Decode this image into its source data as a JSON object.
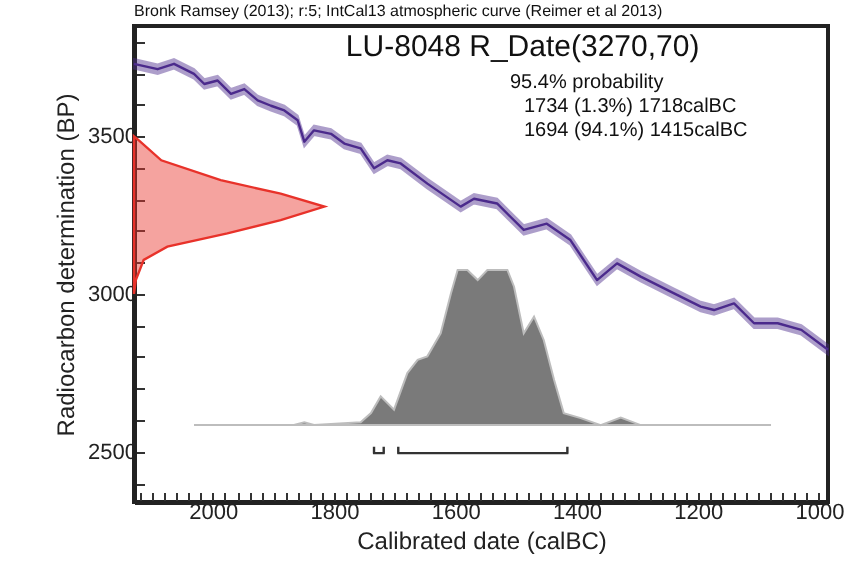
{
  "chart_data": {
    "type": "line",
    "title": "LU-8048 R_Date(3270,70)",
    "xlabel": "Calibrated date (calBC)",
    "ylabel": "Radiocarbon determination (BP)",
    "annotations": [
      "Bronk Ramsey (2013); r:5; IntCal13 atmospheric curve (Reimer et al 2013)",
      "95.4% probability",
      "1734 (1.3%) 1718calBC",
      "1694 (94.1%) 1415calBC"
    ],
    "xlim": [
      2130,
      985
    ],
    "ylim": [
      2340,
      3850
    ],
    "xticks": [
      {
        "value": 2120,
        "label": null
      },
      {
        "value": 2100,
        "label": null
      },
      {
        "value": 2080,
        "label": null
      },
      {
        "value": 2060,
        "label": null
      },
      {
        "value": 2040,
        "label": null
      },
      {
        "value": 2020,
        "label": null
      },
      2000,
      {
        "value": 1980,
        "label": null
      },
      {
        "value": 1960,
        "label": null
      },
      {
        "value": 1940,
        "label": null
      },
      {
        "value": 1920,
        "label": null
      },
      {
        "value": 1900,
        "label": null
      },
      {
        "value": 1880,
        "label": null
      },
      {
        "value": 1860,
        "label": null
      },
      {
        "value": 1840,
        "label": null
      },
      {
        "value": 1820,
        "label": null
      },
      1800,
      {
        "value": 1780,
        "label": null
      },
      {
        "value": 1760,
        "label": null
      },
      {
        "value": 1740,
        "label": null
      },
      {
        "value": 1720,
        "label": null
      },
      {
        "value": 1700,
        "label": null
      },
      {
        "value": 1680,
        "label": null
      },
      {
        "value": 1660,
        "label": null
      },
      {
        "value": 1640,
        "label": null
      },
      {
        "value": 1620,
        "label": null
      },
      1600,
      {
        "value": 1580,
        "label": null
      },
      {
        "value": 1560,
        "label": null
      },
      {
        "value": 1540,
        "label": null
      },
      {
        "value": 1520,
        "label": null
      },
      {
        "value": 1500,
        "label": null
      },
      {
        "value": 1480,
        "label": null
      },
      {
        "value": 1460,
        "label": null
      },
      {
        "value": 1440,
        "label": null
      },
      {
        "value": 1420,
        "label": null
      },
      1400,
      {
        "value": 1380,
        "label": null
      },
      {
        "value": 1360,
        "label": null
      },
      {
        "value": 1340,
        "label": null
      },
      {
        "value": 1320,
        "label": null
      },
      {
        "value": 1300,
        "label": null
      },
      {
        "value": 1280,
        "label": null
      },
      {
        "value": 1260,
        "label": null
      },
      {
        "value": 1240,
        "label": null
      },
      {
        "value": 1220,
        "label": null
      },
      1200,
      {
        "value": 1180,
        "label": null
      },
      {
        "value": 1160,
        "label": null
      },
      {
        "value": 1140,
        "label": null
      },
      {
        "value": 1120,
        "label": null
      },
      {
        "value": 1100,
        "label": null
      },
      {
        "value": 1080,
        "label": null
      },
      {
        "value": 1060,
        "label": null
      },
      {
        "value": 1040,
        "label": null
      },
      {
        "value": 1020,
        "label": null
      },
      1000
    ],
    "yticks": [
      {
        "value": 2400,
        "label": null
      },
      2500,
      {
        "value": 2600,
        "label": null
      },
      {
        "value": 2700,
        "label": null
      },
      {
        "value": 2800,
        "label": null
      },
      {
        "value": 2900,
        "label": null
      },
      3000,
      {
        "value": 3100,
        "label": null
      },
      {
        "value": 3200,
        "label": null
      },
      {
        "value": 3300,
        "label": null
      },
      {
        "value": 3400,
        "label": null
      },
      3500,
      {
        "value": 3600,
        "label": null
      },
      {
        "value": 3700,
        "label": null
      },
      {
        "value": 3800,
        "label": null
      }
    ],
    "grid": false,
    "series": [
      {
        "color": "#4b2a8c",
        "x": [
          2130,
          2091,
          2064,
          2031,
          2014,
          1992,
          1970,
          1948,
          1926,
          1904,
          1882,
          1860,
          1849,
          1833,
          1805,
          1783,
          1756,
          1734,
          1712,
          1690,
          1646,
          1591,
          1569,
          1531,
          1487,
          1449,
          1410,
          1366,
          1333,
          1294,
          1239,
          1195,
          1173,
          1140,
          1107,
          1068,
          1029,
          985
        ],
        "values": [
          3730,
          3713,
          3730,
          3698,
          3666,
          3677,
          3635,
          3650,
          3614,
          3597,
          3582,
          3551,
          3483,
          3519,
          3508,
          3477,
          3462,
          3399,
          3424,
          3414,
          3350,
          3277,
          3302,
          3287,
          3203,
          3223,
          3171,
          3044,
          3097,
          3055,
          3002,
          2960,
          2949,
          2970,
          2907,
          2907,
          2886,
          2823
        ],
        "lower": [
          3715,
          3698,
          3715,
          3683,
          3651,
          3662,
          3620,
          3635,
          3599,
          3582,
          3567,
          3536,
          3468,
          3504,
          3493,
          3462,
          3447,
          3384,
          3409,
          3399,
          3335,
          3262,
          3287,
          3272,
          3188,
          3208,
          3156,
          3029,
          3082,
          3040,
          2987,
          2945,
          2934,
          2955,
          2892,
          2892,
          2871,
          2808
        ],
        "upper": [
          3745,
          3728,
          3745,
          3713,
          3681,
          3692,
          3650,
          3665,
          3629,
          3612,
          3597,
          3566,
          3498,
          3534,
          3523,
          3492,
          3477,
          3414,
          3439,
          3429,
          3365,
          3292,
          3317,
          3302,
          3218,
          3238,
          3186,
          3059,
          3112,
          3070,
          3017,
          2975,
          2964,
          2985,
          2922,
          2922,
          2901,
          2838
        ]
      },
      {
        "type": "area",
        "color": "#e8322a",
        "x": [
          2130,
          2122,
          2085,
          1987,
          1888,
          1816,
          1888,
          1976,
          2075,
          2114,
          2127,
          2130
        ],
        "values": [
          3500,
          3487,
          3424,
          3361,
          3318,
          3277,
          3234,
          3192,
          3150,
          3108,
          3044,
          3000
        ]
      },
      {
        "type": "area",
        "color": "#7a7a7a",
        "x": [
          2031,
          1866,
          1849,
          1833,
          1756,
          1739,
          1723,
          1701,
          1679,
          1662,
          1646,
          1624,
          1607,
          1596,
          1580,
          1563,
          1547,
          1514,
          1503,
          1487,
          1470,
          1454,
          1437,
          1421,
          1393,
          1360,
          1327,
          1294,
          1079
        ],
        "values": [
          2584,
          2584,
          2593,
          2584,
          2593,
          2622,
          2675,
          2633,
          2749,
          2791,
          2802,
          2875,
          3002,
          3076,
          3076,
          3044,
          3076,
          3076,
          3023,
          2875,
          2928,
          2854,
          2728,
          2622,
          2606,
          2584,
          2608,
          2584,
          2584
        ]
      },
      {
        "type": "line",
        "color": "#333333",
        "x": [
          1734,
          1734,
          1718,
          1718,
          1706,
          1694,
          1694,
          1415,
          1415
        ],
        "values": [
          2515,
          2495,
          2495,
          2515,
          null,
          2515,
          2495,
          2495,
          2515
        ]
      }
    ]
  }
}
